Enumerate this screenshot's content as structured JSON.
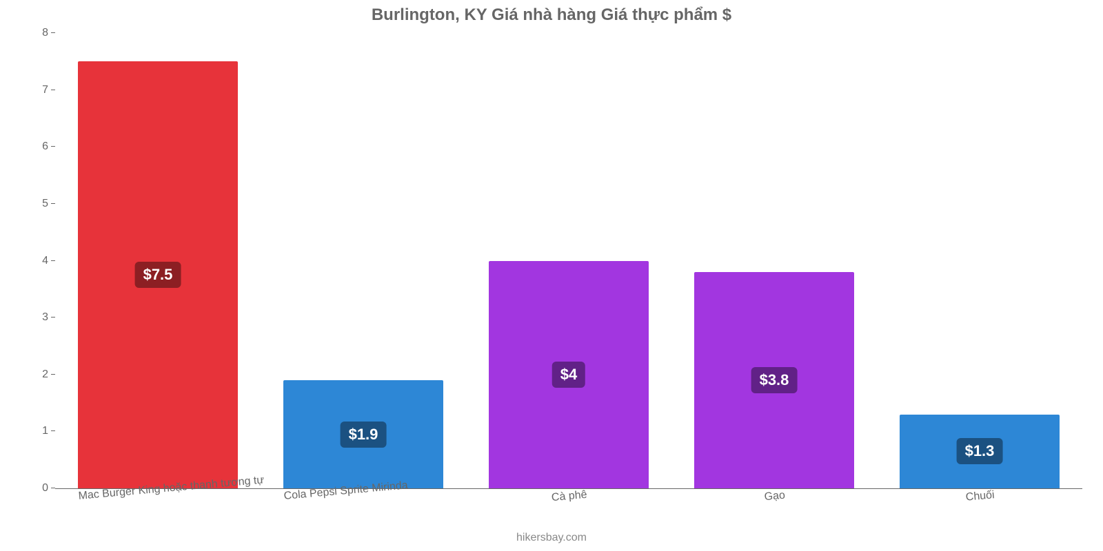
{
  "chart": {
    "type": "bar",
    "title": "Burlington, KY Giá nhà hàng Giá thực phẩm $",
    "title_color": "#666666",
    "title_fontsize": 24,
    "background_color": "#ffffff",
    "axis_color": "#666666",
    "label_color": "#666666",
    "label_fontsize": 16,
    "value_fontsize": 22,
    "ylim": [
      0,
      8
    ],
    "ytick_step": 1,
    "yticks": [
      0,
      1,
      2,
      3,
      4,
      5,
      6,
      7,
      8
    ],
    "bar_width_ratio": 0.78,
    "xlabel_rotation_deg": -5,
    "categories": [
      "Mac Burger King hoặc thanh tương tự",
      "Cola Pepsi Sprite Mirinda",
      "Cà phê",
      "Gạo",
      "Chuối"
    ],
    "values": [
      7.5,
      1.9,
      4.0,
      3.8,
      1.3
    ],
    "value_labels": [
      "$7.5",
      "$1.9",
      "$4",
      "$3.8",
      "$1.3"
    ],
    "bar_colors": [
      "#e7333a",
      "#2d87d6",
      "#a236e0",
      "#a236e0",
      "#2d87d6"
    ],
    "badge_colors": [
      "#8c1f23",
      "#1b5181",
      "#612187",
      "#612187",
      "#1b5181"
    ],
    "attribution": "hikersbay.com",
    "attribution_color": "#888888"
  }
}
